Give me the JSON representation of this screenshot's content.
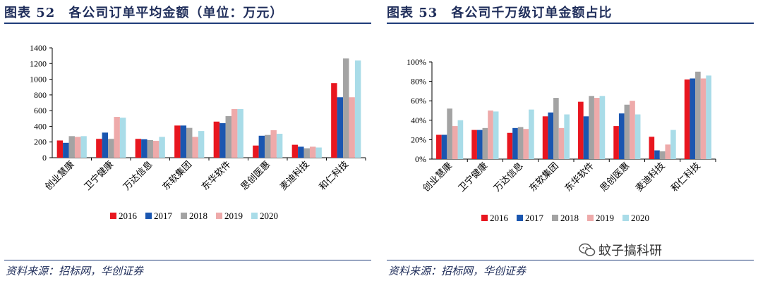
{
  "colors": [
    "#e8161f",
    "#1a56b0",
    "#a3a3a3",
    "#eeaaaa",
    "#a9dce8"
  ],
  "left": {
    "title": "图表 52　各公司订单平均金额（单位：万元）",
    "source": "资料来源：招标网，华创证券"
  },
  "right": {
    "title": "图表 53　各公司千万级订单金额占比",
    "source": "资料来源：招标网，华创证券"
  },
  "watermark": "蚊子搞科研",
  "chart_data": [
    {
      "type": "bar",
      "title": "",
      "categories": [
        "创业慧康",
        "卫宁健康",
        "万达信息",
        "东软集团",
        "东华软件",
        "思创医惠",
        "麦迪科技",
        "和仁科技"
      ],
      "series": [
        {
          "name": "2016",
          "values": [
            220,
            240,
            240,
            410,
            460,
            155,
            165,
            950
          ]
        },
        {
          "name": "2017",
          "values": [
            190,
            320,
            235,
            410,
            440,
            280,
            140,
            770
          ]
        },
        {
          "name": "2018",
          "values": [
            275,
            240,
            225,
            380,
            530,
            290,
            120,
            1265
          ]
        },
        {
          "name": "2019",
          "values": [
            265,
            520,
            215,
            265,
            620,
            350,
            140,
            770
          ]
        },
        {
          "name": "2020",
          "values": [
            275,
            510,
            265,
            340,
            620,
            305,
            130,
            1240
          ]
        }
      ],
      "yticks": [
        "0",
        "200",
        "400",
        "600",
        "800",
        "1000",
        "1200",
        "1400"
      ],
      "ylim": [
        0,
        1400
      ],
      "legend": "bottom"
    },
    {
      "type": "bar",
      "title": "",
      "categories": [
        "创业慧康",
        "卫宁健康",
        "万达信息",
        "东软集团",
        "东华软件",
        "思创医惠",
        "麦迪科技",
        "和仁科技"
      ],
      "series": [
        {
          "name": "2016",
          "values": [
            25,
            30,
            27,
            44,
            59,
            34,
            23,
            82
          ]
        },
        {
          "name": "2017",
          "values": [
            25,
            30,
            32,
            48,
            44,
            47,
            9,
            83
          ]
        },
        {
          "name": "2018",
          "values": [
            52,
            32,
            33,
            63,
            65,
            56,
            8,
            90
          ]
        },
        {
          "name": "2019",
          "values": [
            34,
            50,
            31,
            32,
            63,
            60,
            15,
            83
          ]
        },
        {
          "name": "2020",
          "values": [
            40,
            49,
            51,
            46,
            65,
            46,
            30,
            86
          ]
        }
      ],
      "yticks": [
        "0%",
        "20%",
        "40%",
        "60%",
        "80%",
        "100%"
      ],
      "ylim": [
        0,
        100
      ],
      "legend": "bottom"
    }
  ]
}
